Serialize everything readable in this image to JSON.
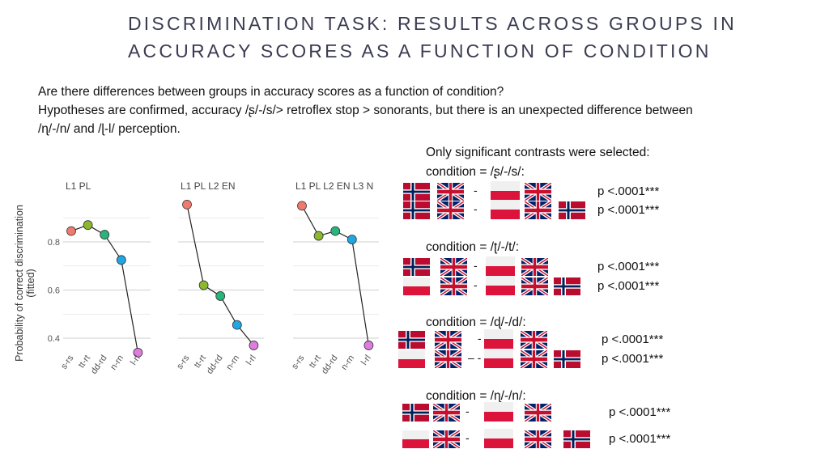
{
  "slide": {
    "title_line1": "DISCRIMINATION TASK: RESULTS ACROSS GROUPS IN",
    "title_line2": "ACCURACY SCORES AS A FUNCTION OF CONDITION",
    "question": "Are there differences between groups in accuracy scores as a function of condition?",
    "hypothesis_line1": "Hypotheses are confirmed, accuracy /ʂ/-/s/> retroflex stop > sonorants, but there is an unexpected difference between",
    "hypothesis_line2": "/ɳ/-/n/ and /ɭ-l/ perception."
  },
  "contrasts": {
    "intro": "Only significant contrasts were selected:",
    "dash": "-",
    "dash_double": "– -",
    "groups": [
      {
        "label": "condition = /ʂ/-/s/:",
        "rows": [
          {
            "left": [
              "norway",
              "uk"
            ],
            "right": [
              "poland",
              "uk"
            ],
            "p": "p <.0001***"
          },
          {
            "left": [
              "norway",
              "uk"
            ],
            "right": [
              "poland",
              "uk",
              "norway"
            ],
            "p": "p <.0001***"
          }
        ]
      },
      {
        "label": "condition = /ʈ/-/t/:",
        "rows": [
          {
            "left": [
              "norway",
              "uk"
            ],
            "right": [
              "poland",
              "uk"
            ],
            "p": "p <.0001***"
          },
          {
            "left": [
              "poland",
              "uk"
            ],
            "right": [
              "poland",
              "uk",
              "norway"
            ],
            "p": "p <.0001***"
          }
        ]
      },
      {
        "label": "condition = /ɖ/-/d/:",
        "rows": [
          {
            "left": [
              "norway",
              "uk"
            ],
            "right": [
              "poland",
              "uk"
            ],
            "p": "p <.0001***"
          },
          {
            "left": [
              "poland",
              "uk"
            ],
            "right": [
              "poland",
              "uk",
              "norway"
            ],
            "p": "p <.0001***"
          }
        ]
      },
      {
        "label": "condition = /ɳ/-/n/:",
        "rows": [
          {
            "left": [
              "norway",
              "uk"
            ],
            "right": [
              "poland",
              "uk"
            ],
            "p": "p <.0001***"
          },
          {
            "left": [
              "poland",
              "uk"
            ],
            "right": [
              "poland",
              "uk",
              "norway"
            ],
            "p": "p <.0001***"
          }
        ]
      }
    ]
  },
  "colors": {
    "sr": "#f07a6e",
    "tt": "#8bb82c",
    "dd": "#26b57a",
    "nn": "#1fa6e3",
    "ll": "#e07be0",
    "norway_red": "#ba0c2f",
    "norway_blue": "#00205b",
    "uk_blue": "#012169",
    "uk_red": "#c8102e",
    "poland_red": "#dc143c"
  },
  "chart_data": {
    "type": "line",
    "ylabel": "Probability of correct discrimination\n(fitted)",
    "ylim": [
      0.32,
      0.98
    ],
    "yticks": [
      0.4,
      0.6,
      0.8
    ],
    "categories": [
      "s-rs",
      "tt-rt",
      "dd-rd",
      "n-rn",
      "l-rl"
    ],
    "panels": [
      {
        "name": "L1 PL",
        "values": [
          0.845,
          0.87,
          0.83,
          0.725,
          0.34
        ]
      },
      {
        "name": "L1 PL L2 EN",
        "values": [
          0.955,
          0.62,
          0.575,
          0.455,
          0.37
        ]
      },
      {
        "name": "L1 PL L2 EN L3 N",
        "values": [
          0.95,
          0.825,
          0.845,
          0.81,
          0.37
        ]
      }
    ],
    "grid": true
  }
}
